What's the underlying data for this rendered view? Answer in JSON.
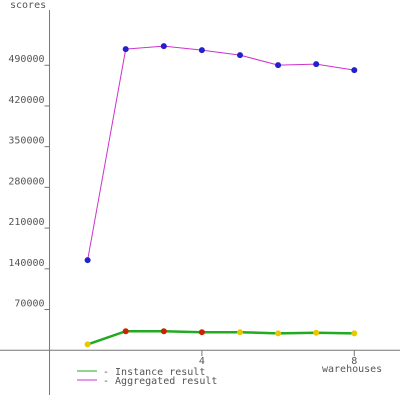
{
  "chart_data": {
    "type": "line",
    "y_label": "scores",
    "x_label": "warehouses",
    "x": [
      1,
      2,
      3,
      4,
      5,
      6,
      7,
      8
    ],
    "series": [
      {
        "name": "- Instance result",
        "color": "#22aa22",
        "marker_colors": [
          "#e8c800",
          "#cc2200",
          "#cc2200",
          "#cc2200",
          "#e8c800",
          "#e8c800",
          "#e8c800",
          "#e8c800"
        ],
        "values": [
          10000,
          32700,
          32700,
          31000,
          31000,
          29000,
          30000,
          29000
        ]
      },
      {
        "name": "- Aggregated result",
        "color": "#cc33cc",
        "marker_colors": [
          "#2222cc",
          "#2222cc",
          "#2222cc",
          "#2222cc",
          "#2222cc",
          "#2222cc",
          "#2222cc",
          "#2222cc"
        ],
        "values": [
          155000,
          517700,
          522800,
          516000,
          507400,
          490200,
          491900,
          481600
        ]
      }
    ],
    "xlim": [
      -1.3,
      9.2
    ],
    "xticks": [
      4,
      8
    ],
    "ylim": [
      -77000,
      585000
    ],
    "yticks": [
      70000,
      140000,
      210000,
      280000,
      350000,
      420000,
      490000
    ]
  }
}
